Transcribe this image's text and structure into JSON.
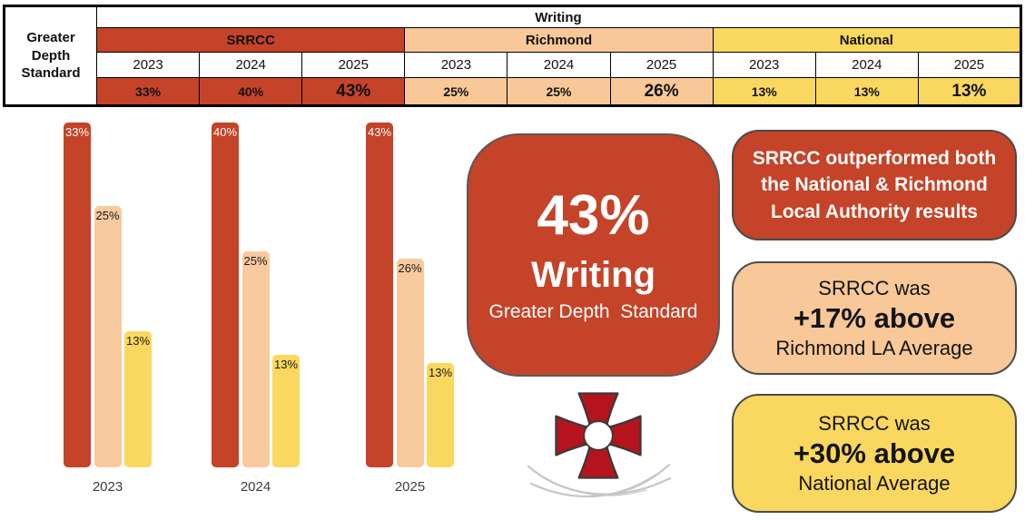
{
  "table": {
    "row_label": "Greater Depth Standard",
    "subject": "Writing",
    "years": [
      "2023",
      "2024",
      "2025"
    ],
    "sections": [
      {
        "name": "SRRCC",
        "color": "#C54328",
        "values": [
          "33%",
          "40%",
          "43%"
        ]
      },
      {
        "name": "Richmond",
        "color": "#F8C898",
        "values": [
          "25%",
          "25%",
          "26%"
        ]
      },
      {
        "name": "National",
        "color": "#FAD75F",
        "values": [
          "13%",
          "13%",
          "13%"
        ]
      }
    ]
  },
  "chart_data": {
    "type": "bar",
    "categories": [
      "2023",
      "2024",
      "2025"
    ],
    "series": [
      {
        "name": "SRRCC",
        "color": "#C54328",
        "label_color": "#FFFFFF",
        "values": [
          33,
          40,
          43
        ]
      },
      {
        "name": "Richmond",
        "color": "#F8CA9E",
        "label_color": "#1A1A1A",
        "values": [
          25,
          25,
          26
        ]
      },
      {
        "name": "National",
        "color": "#FAD75F",
        "label_color": "#1A1A1A",
        "values": [
          13,
          13,
          13
        ]
      }
    ],
    "value_suffix": "%",
    "title": "",
    "xlabel": "",
    "ylabel": "",
    "legend": "none",
    "gridlines": false,
    "bar_labels": "inside-top",
    "scaling": "each year group normalized to its tallest (SRRCC) bar"
  },
  "highlight_card": {
    "value": "43%",
    "subject": "Writing",
    "caption": "Greater Depth  Standard",
    "color": "#C54328"
  },
  "callouts": [
    {
      "text": "SRRCC outperformed both the National & Richmond Local Authority results",
      "color": "#C54328"
    },
    {
      "line1": "SRRCC was",
      "line2": "+17% above",
      "line3": "Richmond LA Average",
      "color": "#F8C898"
    },
    {
      "line1": "SRRCC was",
      "line2": "+30% above",
      "line3": "National Average",
      "color": "#FAD75F"
    }
  ],
  "logo": {
    "name": "red cross pattee crest with white centre and grey swoosh",
    "cross_color": "#B5141E",
    "outline_color": "#3A3A3A",
    "swoosh_color": "#C6C6C6"
  }
}
